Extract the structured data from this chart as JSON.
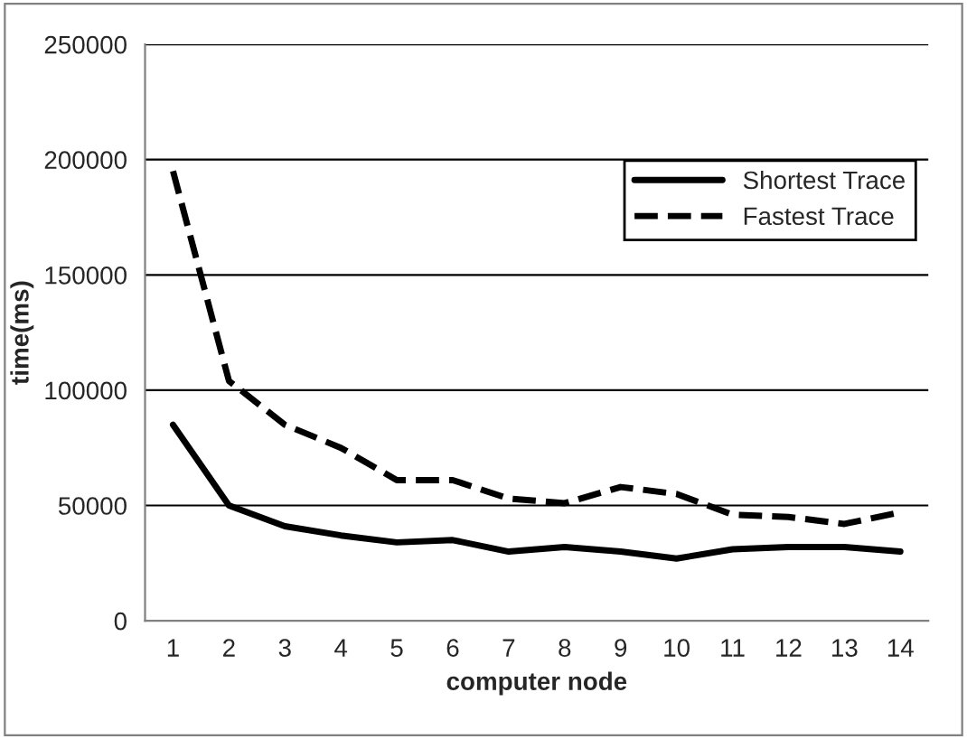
{
  "chart_data": {
    "type": "line",
    "xlabel": "computer node",
    "ylabel": "time(ms)",
    "categories": [
      "1",
      "2",
      "3",
      "4",
      "5",
      "6",
      "7",
      "8",
      "9",
      "10",
      "11",
      "12",
      "13",
      "14"
    ],
    "series": [
      {
        "name": "Shortest Trace",
        "color": "#000000",
        "line_style": "solid",
        "values": [
          85000,
          50000,
          41000,
          37000,
          34000,
          35000,
          30000,
          32000,
          30000,
          27000,
          31000,
          32000,
          32000,
          30000
        ]
      },
      {
        "name": "Fastest Trace",
        "color": "#000000",
        "line_style": "dashed",
        "values": [
          195000,
          104000,
          85000,
          75000,
          61000,
          61000,
          53000,
          51000,
          58000,
          55000,
          46000,
          45000,
          42000,
          47000
        ]
      }
    ],
    "ylim": [
      0,
      250000
    ],
    "yticks": [
      0,
      50000,
      100000,
      150000,
      200000,
      250000
    ],
    "grid": "y",
    "legend": "top right"
  }
}
